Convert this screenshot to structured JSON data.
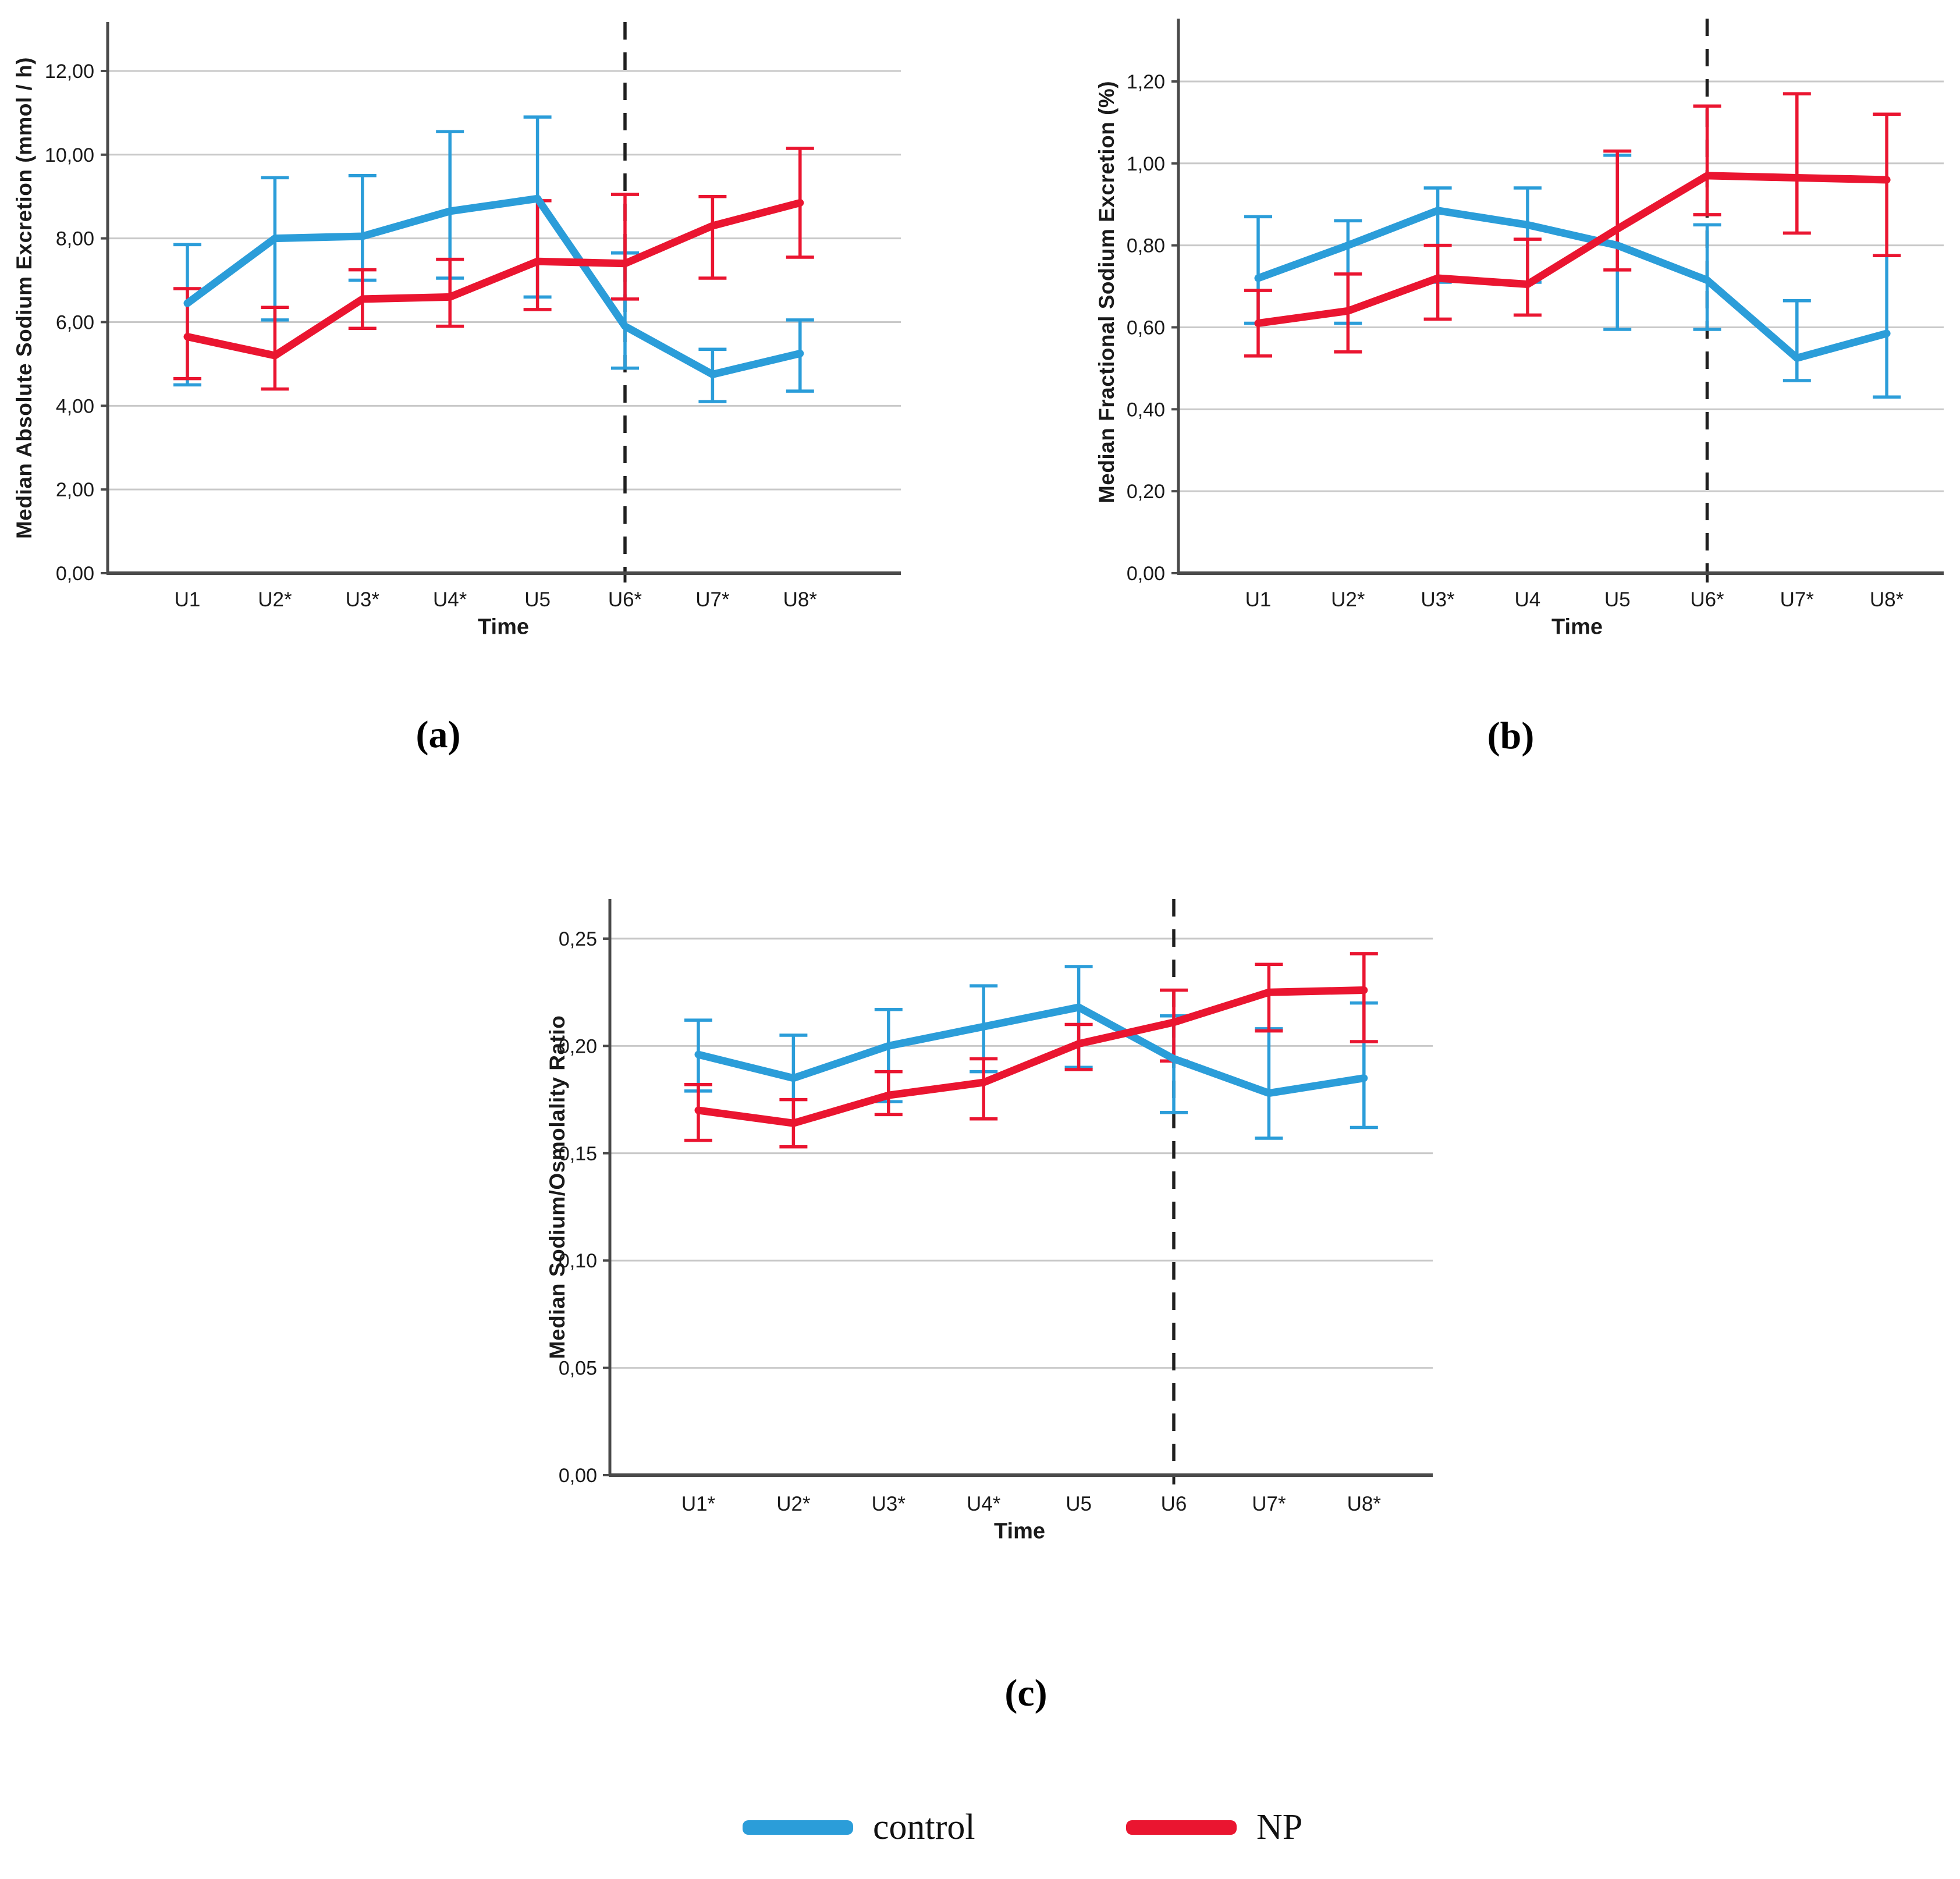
{
  "figure": {
    "background": "#FFFFFF",
    "description": "Three line charts with error bars comparing control and NP groups over urine collection time points"
  },
  "colors": {
    "control": "#2B9DD9",
    "np": "#EA1530",
    "gridline": "#C9C9C9",
    "axis": "#4A4A4A",
    "dashed_line": "#1F1F1F",
    "text": "#1A1A1A"
  },
  "legend": {
    "position": "bottom-center",
    "items": [
      {
        "name": "control",
        "label": "control",
        "color_key": "control"
      },
      {
        "name": "np",
        "label": "NP",
        "color_key": "np"
      }
    ]
  },
  "chart_data": [
    {
      "id": "a",
      "type": "line",
      "panel_label": "(a)",
      "title": "",
      "xlabel": "Time",
      "ylabel": "Median Absolute Sodium Excretion (mmol / h)",
      "categories": [
        "U1",
        "U2*",
        "U3*",
        "U4*",
        "U5",
        "U6*",
        "U7*",
        "U8*"
      ],
      "ylim": [
        0,
        13.2
      ],
      "grid": true,
      "error_bars": true,
      "dashed_line_at": "U6*",
      "yticks": [
        {
          "value": 0,
          "label": "0,00"
        },
        {
          "value": 2,
          "label": "2,00"
        },
        {
          "value": 4,
          "label": "4,00"
        },
        {
          "value": 6,
          "label": "6,00"
        },
        {
          "value": 8,
          "label": "8,00"
        },
        {
          "value": 10,
          "label": "10,00"
        },
        {
          "value": 12,
          "label": "12,00"
        }
      ],
      "series": [
        {
          "name": "control",
          "values": [
            6.45,
            8.0,
            8.05,
            8.65,
            8.95,
            5.9,
            4.75,
            5.25
          ],
          "err_low": [
            4.5,
            6.05,
            7.0,
            7.05,
            6.6,
            4.9,
            4.1,
            4.35
          ],
          "err_high": [
            7.85,
            9.45,
            9.5,
            10.55,
            10.9,
            7.65,
            5.35,
            6.05
          ]
        },
        {
          "name": "NP",
          "values": [
            5.65,
            5.2,
            6.55,
            6.6,
            7.45,
            7.4,
            8.3,
            8.85
          ],
          "err_low": [
            4.65,
            4.4,
            5.85,
            5.9,
            6.3,
            6.55,
            7.05,
            7.55
          ],
          "err_high": [
            6.8,
            6.35,
            7.25,
            7.5,
            8.9,
            9.05,
            9.0,
            10.15
          ]
        }
      ]
    },
    {
      "id": "b",
      "type": "line",
      "panel_label": "(b)",
      "title": "",
      "xlabel": "Time",
      "ylabel": "Median Fractional Sodium Excretion (%)",
      "categories": [
        "U1",
        "U2*",
        "U3*",
        "U4",
        "U5",
        "U6*",
        "U7*",
        "U8*"
      ],
      "ylim": [
        0,
        1.35
      ],
      "grid": true,
      "error_bars": true,
      "dashed_line_at": "U6*",
      "yticks": [
        {
          "value": 0,
          "label": "0,00"
        },
        {
          "value": 0.2,
          "label": "0,20"
        },
        {
          "value": 0.4,
          "label": "0,40"
        },
        {
          "value": 0.6,
          "label": "0,60"
        },
        {
          "value": 0.8,
          "label": "0,80"
        },
        {
          "value": 1.0,
          "label": "1,00"
        },
        {
          "value": 1.2,
          "label": "1,20"
        }
      ],
      "series": [
        {
          "name": "control",
          "values": [
            0.72,
            0.8,
            0.885,
            0.85,
            0.8,
            0.715,
            0.525,
            0.585
          ],
          "err_low": [
            0.61,
            0.61,
            0.71,
            0.71,
            0.595,
            0.595,
            0.47,
            0.43
          ],
          "err_high": [
            0.87,
            0.86,
            0.94,
            0.94,
            1.02,
            0.85,
            0.665,
            0.775
          ]
        },
        {
          "name": "NP",
          "values": [
            0.61,
            0.64,
            0.72,
            0.705,
            0.84,
            0.97,
            0.965,
            0.96
          ],
          "err_low": [
            0.53,
            0.54,
            0.62,
            0.63,
            0.74,
            0.875,
            0.83,
            0.775
          ],
          "err_high": [
            0.69,
            0.73,
            0.8,
            0.815,
            1.03,
            1.14,
            1.17,
            1.12
          ]
        }
      ]
    },
    {
      "id": "c",
      "type": "line",
      "panel_label": "(c)",
      "title": "",
      "xlabel": "Time",
      "ylabel": "Median Sodium/Osmolality Ratio",
      "categories": [
        "U1*",
        "U2*",
        "U3*",
        "U4*",
        "U5",
        "U6",
        "U7*",
        "U8*"
      ],
      "ylim": [
        0,
        0.27
      ],
      "grid": true,
      "error_bars": true,
      "dashed_line_at": "U6",
      "yticks": [
        {
          "value": 0,
          "label": "0,00"
        },
        {
          "value": 0.05,
          "label": "0,05"
        },
        {
          "value": 0.1,
          "label": "0,10"
        },
        {
          "value": 0.15,
          "label": "0,15"
        },
        {
          "value": 0.2,
          "label": "0,20"
        },
        {
          "value": 0.25,
          "label": "0,25"
        }
      ],
      "series": [
        {
          "name": "control",
          "values": [
            0.196,
            0.185,
            0.2,
            0.209,
            0.218,
            0.194,
            0.178,
            0.185
          ],
          "err_low": [
            0.179,
            0.165,
            0.174,
            0.188,
            0.19,
            0.169,
            0.157,
            0.162
          ],
          "err_high": [
            0.212,
            0.205,
            0.217,
            0.228,
            0.237,
            0.214,
            0.208,
            0.22
          ]
        },
        {
          "name": "NP",
          "values": [
            0.17,
            0.164,
            0.177,
            0.183,
            0.201,
            0.211,
            0.225,
            0.226
          ],
          "err_low": [
            0.156,
            0.153,
            0.168,
            0.166,
            0.189,
            0.193,
            0.207,
            0.202
          ],
          "err_high": [
            0.182,
            0.175,
            0.188,
            0.194,
            0.21,
            0.226,
            0.238,
            0.243
          ]
        }
      ]
    }
  ]
}
